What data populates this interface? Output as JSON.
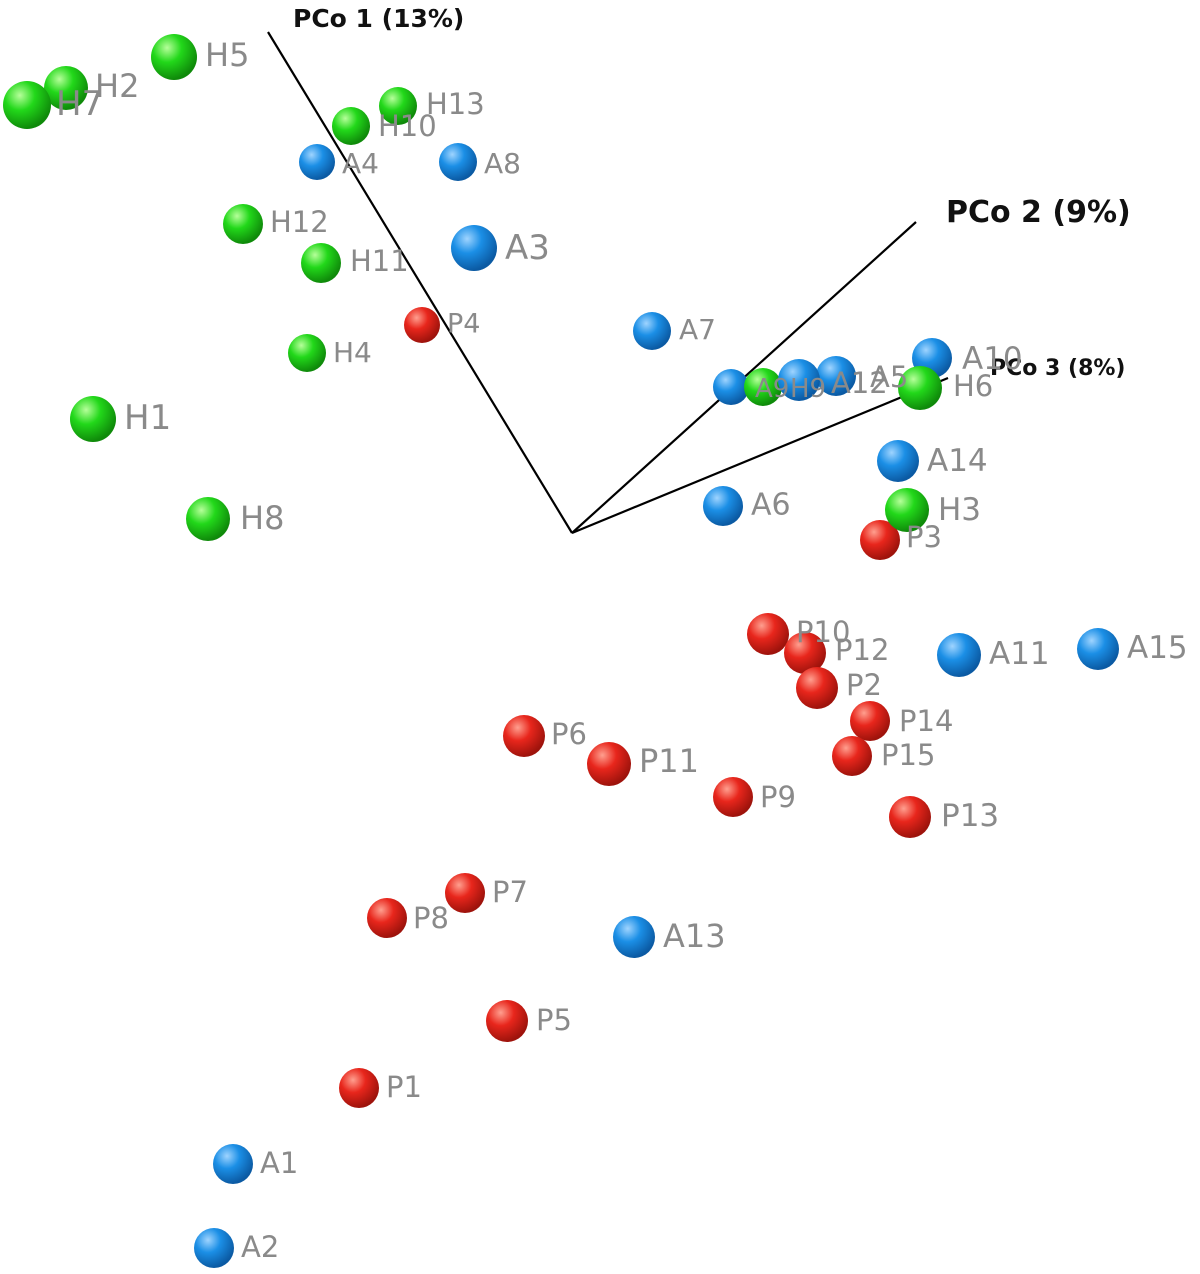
{
  "chart_data": {
    "type": "scatter",
    "projection": "3d",
    "axes": [
      {
        "label": "PCo 1 (13%)"
      },
      {
        "label": "PCo 2 (9%)"
      },
      {
        "label": "PCo 3 (8%)"
      }
    ],
    "colors": {
      "H": "#22d81a",
      "A": "#1b8fe6",
      "P": "#e8261c"
    },
    "series": [
      {
        "points": [
          {
            "label": "H5"
          },
          {
            "label": "H2"
          },
          {
            "label": "H7"
          },
          {
            "label": "H13"
          },
          {
            "label": "H10"
          },
          {
            "label": "H12"
          },
          {
            "label": "H11"
          },
          {
            "label": "H4"
          },
          {
            "label": "H1"
          },
          {
            "label": "H8"
          },
          {
            "label": "H6"
          },
          {
            "label": "H3"
          },
          {
            "label": "H9"
          }
        ]
      },
      {
        "points": [
          {
            "label": "A4"
          },
          {
            "label": "A8"
          },
          {
            "label": "A3"
          },
          {
            "label": "A7"
          },
          {
            "label": "A10"
          },
          {
            "label": "A12"
          },
          {
            "label": "A5"
          },
          {
            "label": "A9"
          },
          {
            "label": "A14"
          },
          {
            "label": "A6"
          },
          {
            "label": "A11"
          },
          {
            "label": "A15"
          },
          {
            "label": "A13"
          },
          {
            "label": "A1"
          },
          {
            "label": "A2"
          }
        ]
      },
      {
        "points": [
          {
            "label": "P4"
          },
          {
            "label": "P3"
          },
          {
            "label": "P10"
          },
          {
            "label": "P12"
          },
          {
            "label": "P2"
          },
          {
            "label": "P14"
          },
          {
            "label": "P15"
          },
          {
            "label": "P6"
          },
          {
            "label": "P11"
          },
          {
            "label": "P9"
          },
          {
            "label": "P13"
          },
          {
            "label": "P7"
          },
          {
            "label": "P8"
          },
          {
            "label": "P5"
          },
          {
            "label": "P1"
          }
        ]
      }
    ]
  }
}
